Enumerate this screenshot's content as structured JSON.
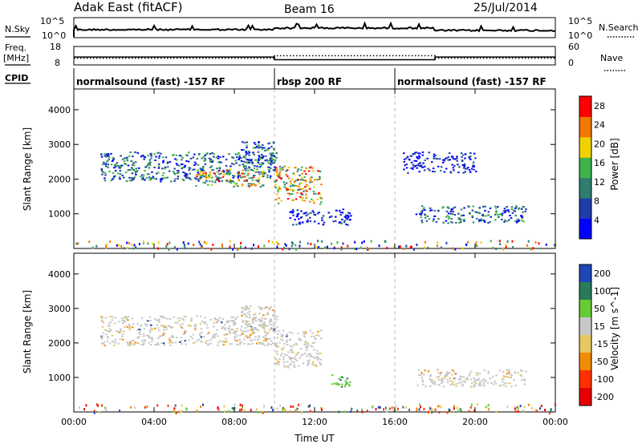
{
  "header": {
    "title": "Adak East (fitACF)",
    "beam": "Beam 16",
    "date": "25/Jul/2014"
  },
  "noise_panel": {
    "left_label": "N.Sky",
    "right_label": "N.Search",
    "left_ticks": [
      "10^5",
      "10^0"
    ],
    "right_ticks": [
      "10^5",
      "10^0"
    ]
  },
  "freq_panel": {
    "left_label_1": "Freq.",
    "left_label_2": "[MHz]",
    "right_label": "Nave",
    "left_ticks": [
      "18",
      "8"
    ],
    "right_ticks": [
      "60",
      "0"
    ],
    "freq_segments": [
      {
        "start_h": 0,
        "end_h": 10,
        "value_mhz": 12.3
      },
      {
        "start_h": 10,
        "end_h": 18,
        "value_mhz": 10.8
      },
      {
        "start_h": 18,
        "end_h": 24,
        "value_mhz": 12.3
      }
    ],
    "nave_segments": [
      {
        "start_h": 0,
        "end_h": 10,
        "value": 22
      },
      {
        "start_h": 10,
        "end_h": 18,
        "value": 30
      },
      {
        "start_h": 18,
        "end_h": 24,
        "value": 22
      }
    ]
  },
  "cpid": {
    "label": "CPID",
    "segments": [
      {
        "start_h": 0,
        "end_h": 10,
        "text": "normalsound (fast) -157 RF"
      },
      {
        "start_h": 10,
        "end_h": 16,
        "text": "rbsp 200 RF"
      },
      {
        "start_h": 16,
        "end_h": 24,
        "text": "normalsound (fast) -157 RF"
      }
    ]
  },
  "chart_data": [
    {
      "type": "heatmap",
      "xlabel": "",
      "ylabel": "Slant Range [km]",
      "xlim": [
        0,
        24
      ],
      "ylim": [
        0,
        4600
      ],
      "yticks": [
        "1000",
        "2000",
        "3000",
        "4000"
      ],
      "colorbar": {
        "label": "Power [dB]",
        "ticks": [
          "4",
          "8",
          "12",
          "16",
          "20",
          "24",
          "28"
        ],
        "range": [
          0,
          30
        ]
      },
      "regions": [
        {
          "t0": 1.3,
          "t1": 10.1,
          "r0": 1950,
          "r1": 2800,
          "level": "mid"
        },
        {
          "t0": 6.0,
          "t1": 9.4,
          "r0": 1800,
          "r1": 2300,
          "level": "high"
        },
        {
          "t0": 8.3,
          "t1": 10.0,
          "r0": 2300,
          "r1": 3100,
          "level": "mid"
        },
        {
          "t0": 10.0,
          "t1": 12.3,
          "r0": 1300,
          "r1": 2400,
          "level": "high"
        },
        {
          "t0": 10.7,
          "t1": 13.8,
          "r0": 700,
          "r1": 1150,
          "level": "low"
        },
        {
          "t0": 17.0,
          "t1": 22.5,
          "r0": 750,
          "r1": 1250,
          "level": "mid"
        },
        {
          "t0": 16.4,
          "t1": 20.0,
          "r0": 2200,
          "r1": 2800,
          "level": "low"
        }
      ]
    },
    {
      "type": "heatmap",
      "xlabel": "Time UT",
      "ylabel": "Slant Range [km]",
      "xlim": [
        0,
        24
      ],
      "ylim": [
        0,
        4600
      ],
      "xticks": [
        "00:00",
        "04:00",
        "08:00",
        "12:00",
        "16:00",
        "20:00",
        "00:00"
      ],
      "yticks": [
        "1000",
        "2000",
        "3000",
        "4000"
      ],
      "colorbar": {
        "label": "Velocity [m s^-1]",
        "ticks": [
          "200",
          "100",
          "50",
          "15",
          "-15",
          "-50",
          "-100",
          "-200"
        ]
      },
      "regions": [
        {
          "t0": 1.3,
          "t1": 10.1,
          "r0": 1950,
          "r1": 2800,
          "level": "ground"
        },
        {
          "t0": 8.3,
          "t1": 10.0,
          "r0": 2300,
          "r1": 3100,
          "level": "ground"
        },
        {
          "t0": 10.0,
          "t1": 12.3,
          "r0": 1300,
          "r1": 2400,
          "level": "ground"
        },
        {
          "t0": 12.8,
          "t1": 13.8,
          "r0": 750,
          "r1": 1100,
          "level": "green"
        },
        {
          "t0": 17.0,
          "t1": 22.5,
          "r0": 750,
          "r1": 1250,
          "level": "ground"
        }
      ]
    }
  ],
  "colors": {
    "power_scale": [
      "#0000ff",
      "#1e3caa",
      "#2e7d6e",
      "#3cb44b",
      "#f0d000",
      "#f07800",
      "#ff0000"
    ],
    "velocity_scale": [
      "#1e46b4",
      "#287a5a",
      "#66cc33",
      "#c8c8c8",
      "#e8c860",
      "#f08c00",
      "#ff3000",
      "#e60000"
    ]
  }
}
